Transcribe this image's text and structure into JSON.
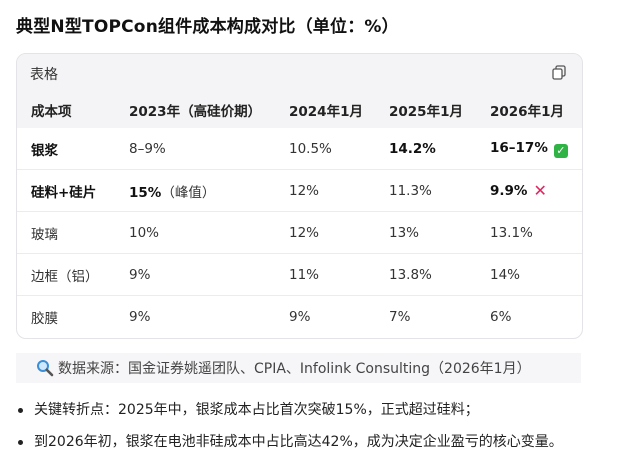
{
  "title": "典型N型TOPCon组件成本构成对比（单位：%）",
  "card": {
    "label": "表格",
    "copy_icon": "copy-icon"
  },
  "table": {
    "headers": [
      "成本项",
      "2023年（高硅价期）",
      "2024年1月",
      "2025年1月",
      "2026年1月"
    ],
    "rows": [
      {
        "item": "银浆",
        "c2023": "8–9%",
        "c2023_note": "",
        "c2024": "10.5%",
        "c2025": "14.2%",
        "c2026": "16–17%",
        "flag": "check"
      },
      {
        "item": "硅料+硅片",
        "c2023": "15%",
        "c2023_note": "（峰值）",
        "c2024": "12%",
        "c2025": "11.3%",
        "c2026": "9.9%",
        "flag": "cross"
      },
      {
        "item": "玻璃",
        "c2023": "10%",
        "c2023_note": "",
        "c2024": "12%",
        "c2025": "13%",
        "c2026": "13.1%",
        "flag": ""
      },
      {
        "item": "边框（铝）",
        "c2023": "9%",
        "c2023_note": "",
        "c2024": "11%",
        "c2025": "13.8%",
        "c2026": "14%",
        "flag": ""
      },
      {
        "item": "胶膜",
        "c2023": "9%",
        "c2023_note": "",
        "c2024": "9%",
        "c2025": "7%",
        "c2026": "6%",
        "flag": ""
      }
    ]
  },
  "source": {
    "icon": "magnifier-icon",
    "text": "数据来源：国金证券姚遥团队、CPIA、Infolink Consulting（2026年1月）"
  },
  "bullets": [
    "关键转折点：2025年中，银浆成本占比首次突破15%，正式超过硅料；",
    "到2026年初，银浆在电池非硅成本中占比高达42%，成为决定企业盈亏的核心变量。"
  ],
  "colors": {
    "check": "#2fb344",
    "cross": "#e0245e",
    "header_bg": "#f4f4f6"
  }
}
